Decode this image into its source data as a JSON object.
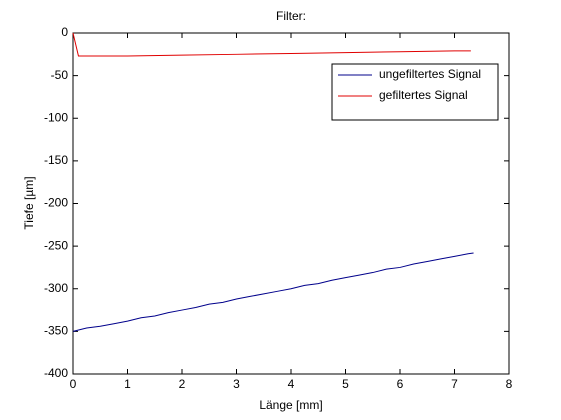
{
  "chart_data": {
    "type": "line",
    "title": "Filter:",
    "x_label": "Länge [mm]",
    "y_label": "Tiefe [µm]",
    "xlim": [
      0,
      8
    ],
    "ylim": [
      -400,
      0
    ],
    "xticks": [
      0,
      1,
      2,
      3,
      4,
      5,
      6,
      7,
      8
    ],
    "yticks": [
      0,
      -50,
      -100,
      -150,
      -200,
      -250,
      -300,
      -350,
      -400
    ],
    "grid": false,
    "legend": "upper right",
    "series": [
      {
        "name": "ungefiltertes Signal",
        "color": "#00008b",
        "x": [
          0,
          0.25,
          0.5,
          0.75,
          1,
          1.25,
          1.5,
          1.75,
          2,
          2.25,
          2.5,
          2.75,
          3,
          3.25,
          3.5,
          3.75,
          4,
          4.25,
          4.5,
          4.75,
          5,
          5.25,
          5.5,
          5.75,
          6,
          6.25,
          6.5,
          6.75,
          7,
          7.25,
          7.35
        ],
        "values": [
          -350,
          -346,
          -344,
          -341,
          -338,
          -334,
          -332,
          -328,
          -325,
          -322,
          -318,
          -316,
          -312,
          -309,
          -306,
          -303,
          -300,
          -296,
          -294,
          -290,
          -287,
          -284,
          -281,
          -277,
          -275,
          -271,
          -268,
          -265,
          -262,
          -259,
          -258
        ]
      },
      {
        "name": "gefiltertes Signal",
        "color": "#e00000",
        "x": [
          0,
          0.1,
          1,
          2,
          3,
          4,
          5,
          6,
          7,
          7.3
        ],
        "values": [
          0,
          -27,
          -27,
          -26,
          -25,
          -24,
          -23,
          -22,
          -21,
          -21
        ]
      }
    ]
  }
}
